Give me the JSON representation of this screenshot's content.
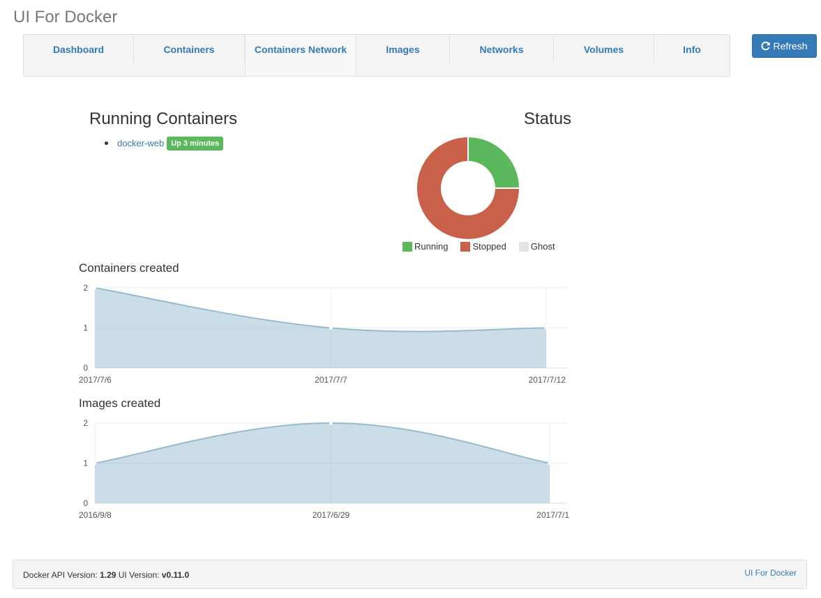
{
  "app": {
    "title": "UI For Docker"
  },
  "nav": {
    "items": [
      {
        "label": "Dashboard"
      },
      {
        "label": "Containers"
      },
      {
        "label": "Containers Network"
      },
      {
        "label": "Images"
      },
      {
        "label": "Networks"
      },
      {
        "label": "Volumes"
      },
      {
        "label": "Info"
      }
    ]
  },
  "toolbar": {
    "refresh_label": "Refresh",
    "refresh_icon": "refresh-icon"
  },
  "running": {
    "title": "Running Containers",
    "containers": [
      {
        "name": "docker-web",
        "status": "Up 3 minutes"
      }
    ]
  },
  "status": {
    "title": "Status",
    "legend": [
      {
        "label": "Running",
        "color": "#5cb85c"
      },
      {
        "label": "Stopped",
        "color": "#c9604a"
      },
      {
        "label": "Ghost",
        "color": "#e0e6e8"
      }
    ]
  },
  "chart_data": [
    {
      "id": "status",
      "type": "pie",
      "title": "Status",
      "categories": [
        "Running",
        "Stopped",
        "Ghost"
      ],
      "values": [
        1,
        3,
        0
      ],
      "colors": [
        "#5cb85c",
        "#c9604a",
        "#e0e6e8"
      ]
    },
    {
      "id": "containers",
      "type": "area",
      "title": "Containers created",
      "categories": [
        "2017/7/6",
        "2017/7/7",
        "2017/7/12"
      ],
      "values": [
        2,
        1,
        1
      ],
      "ylim": [
        0,
        2
      ],
      "yticks": [
        0,
        1,
        2
      ],
      "grid": true
    },
    {
      "id": "images",
      "type": "area",
      "title": "Images created",
      "categories": [
        "2016/9/8",
        "2017/6/29",
        "2017/7/1"
      ],
      "values": [
        1,
        2,
        1
      ],
      "ylim": [
        0,
        2
      ],
      "yticks": [
        0,
        1,
        2
      ],
      "grid": true
    }
  ],
  "footer": {
    "api_label": "Docker API Version:",
    "api_version": "1.29",
    "ui_label": "UI Version:",
    "ui_version": "v0.11.0",
    "link": "UI For Docker"
  }
}
